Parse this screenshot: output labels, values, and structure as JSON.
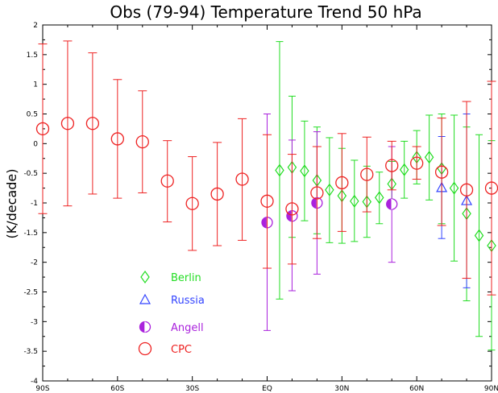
{
  "chart_data": {
    "type": "scatter",
    "title": "Obs (79-94) Temperature Trend  50 hPa",
    "ylabel": "(K/decade)",
    "xlabel": "",
    "xlim": [
      -90,
      90
    ],
    "ylim": [
      -4,
      2
    ],
    "x_ticks": [
      {
        "value": -90,
        "label": "90S"
      },
      {
        "value": -60,
        "label": "60S"
      },
      {
        "value": -30,
        "label": "30S"
      },
      {
        "value": 0,
        "label": "EQ"
      },
      {
        "value": 30,
        "label": "30N"
      },
      {
        "value": 60,
        "label": "60N"
      },
      {
        "value": 90,
        "label": "90N"
      }
    ],
    "y_ticks": [
      {
        "value": 2,
        "label": "2"
      },
      {
        "value": 1.5,
        "label": "1.5"
      },
      {
        "value": 1,
        "label": "1"
      },
      {
        "value": 0.5,
        "label": "0.5"
      },
      {
        "value": 0,
        "label": "0"
      },
      {
        "value": -0.5,
        "label": "-0.5"
      },
      {
        "value": -1,
        "label": "-1"
      },
      {
        "value": -1.5,
        "label": "-1.5"
      },
      {
        "value": -2,
        "label": "-2"
      },
      {
        "value": -2.5,
        "label": "-2.5"
      },
      {
        "value": -3,
        "label": "-3"
      },
      {
        "value": -3.5,
        "label": "-3.5"
      },
      {
        "value": -4,
        "label": "-4"
      }
    ],
    "grid": false,
    "legend_position": "lower-left",
    "series": [
      {
        "name": "Berlin",
        "color": "#22dd22",
        "marker": "diamond",
        "points": [
          {
            "x": 5,
            "y": -0.45,
            "lo": -2.62,
            "hi": 1.72
          },
          {
            "x": 10,
            "y": -0.4,
            "lo": -1.58,
            "hi": 0.8
          },
          {
            "x": 15,
            "y": -0.46,
            "lo": -1.3,
            "hi": 0.38
          },
          {
            "x": 20,
            "y": -0.62,
            "lo": -1.52,
            "hi": 0.28
          },
          {
            "x": 25,
            "y": -0.78,
            "lo": -1.67,
            "hi": 0.1
          },
          {
            "x": 30,
            "y": -0.88,
            "lo": -1.68,
            "hi": -0.08
          },
          {
            "x": 35,
            "y": -0.97,
            "lo": -1.65,
            "hi": -0.28
          },
          {
            "x": 40,
            "y": -0.98,
            "lo": -1.58,
            "hi": -0.38
          },
          {
            "x": 45,
            "y": -0.91,
            "lo": -1.35,
            "hi": -0.48
          },
          {
            "x": 50,
            "y": -0.68,
            "lo": -1.05,
            "hi": -0.3
          },
          {
            "x": 55,
            "y": -0.44,
            "lo": -0.92,
            "hi": 0.04
          },
          {
            "x": 60,
            "y": -0.23,
            "lo": -0.68,
            "hi": 0.22
          },
          {
            "x": 65,
            "y": -0.23,
            "lo": -0.95,
            "hi": 0.48
          },
          {
            "x": 70,
            "y": -0.42,
            "lo": -1.35,
            "hi": 0.5
          },
          {
            "x": 75,
            "y": -0.75,
            "lo": -1.98,
            "hi": 0.48
          },
          {
            "x": 80,
            "y": -1.18,
            "lo": -2.65,
            "hi": 0.28
          },
          {
            "x": 85,
            "y": -1.55,
            "lo": -3.25,
            "hi": 0.15
          },
          {
            "x": 90,
            "y": -1.72,
            "lo": -3.48,
            "hi": 0.05
          }
        ]
      },
      {
        "name": "Russia",
        "color": "#3344ff",
        "marker": "triangle",
        "points": [
          {
            "x": 70,
            "y": -0.74,
            "lo": -1.6,
            "hi": 0.12
          },
          {
            "x": 80,
            "y": -0.96,
            "lo": -2.43,
            "hi": 0.5
          }
        ]
      },
      {
        "name": "Angell",
        "color": "#aa22dd",
        "marker": "half-circle",
        "points": [
          {
            "x": 0,
            "y": -1.33,
            "lo": -3.15,
            "hi": 0.5
          },
          {
            "x": 10,
            "y": -1.22,
            "lo": -2.48,
            "hi": 0.06
          },
          {
            "x": 20,
            "y": -1.0,
            "lo": -2.2,
            "hi": 0.2
          },
          {
            "x": 50,
            "y": -1.02,
            "lo": -2.0,
            "hi": -0.05
          }
        ]
      },
      {
        "name": "CPC",
        "color": "#ee2222",
        "marker": "circle",
        "points": [
          {
            "x": -90,
            "y": 0.25,
            "lo": -1.18,
            "hi": 1.68
          },
          {
            "x": -80,
            "y": 0.34,
            "lo": -1.05,
            "hi": 1.73
          },
          {
            "x": -70,
            "y": 0.34,
            "lo": -0.85,
            "hi": 1.53
          },
          {
            "x": -60,
            "y": 0.08,
            "lo": -0.92,
            "hi": 1.08
          },
          {
            "x": -50,
            "y": 0.03,
            "lo": -0.83,
            "hi": 0.89
          },
          {
            "x": -40,
            "y": -0.63,
            "lo": -1.32,
            "hi": 0.05
          },
          {
            "x": -30,
            "y": -1.01,
            "lo": -1.8,
            "hi": -0.22
          },
          {
            "x": -20,
            "y": -0.85,
            "lo": -1.72,
            "hi": 0.02
          },
          {
            "x": -10,
            "y": -0.6,
            "lo": -1.63,
            "hi": 0.42
          },
          {
            "x": 0,
            "y": -0.97,
            "lo": -2.1,
            "hi": 0.15
          },
          {
            "x": 10,
            "y": -1.1,
            "lo": -2.03,
            "hi": -0.18
          },
          {
            "x": 20,
            "y": -0.83,
            "lo": -1.6,
            "hi": -0.05
          },
          {
            "x": 30,
            "y": -0.66,
            "lo": -1.48,
            "hi": 0.17
          },
          {
            "x": 40,
            "y": -0.52,
            "lo": -1.15,
            "hi": 0.11
          },
          {
            "x": 50,
            "y": -0.37,
            "lo": -0.78,
            "hi": 0.04
          },
          {
            "x": 60,
            "y": -0.33,
            "lo": -0.6,
            "hi": -0.05
          },
          {
            "x": 70,
            "y": -0.48,
            "lo": -1.38,
            "hi": 0.43
          },
          {
            "x": 80,
            "y": -0.78,
            "lo": -2.27,
            "hi": 0.71
          },
          {
            "x": 90,
            "y": -0.75,
            "lo": -2.55,
            "hi": 1.05
          }
        ]
      }
    ]
  }
}
